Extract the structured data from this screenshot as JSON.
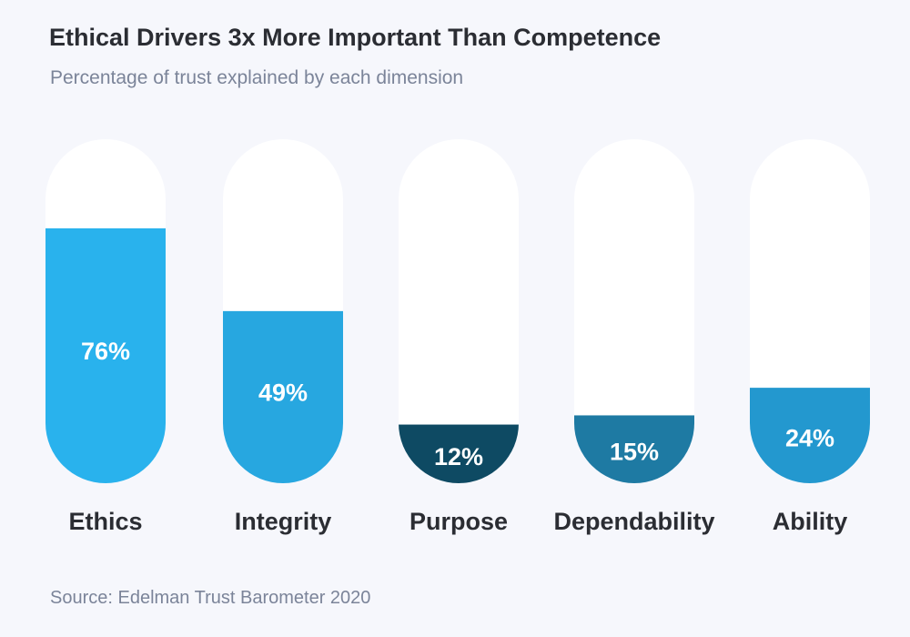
{
  "chart_data": {
    "type": "bar",
    "title": "Ethical Drivers 3x More Important Than Competence",
    "subtitle": "Percentage of trust explained by each dimension",
    "categories": [
      "Ethics",
      "Integrity",
      "Purpose",
      "Dependability",
      "Ability"
    ],
    "values": [
      76,
      49,
      12,
      15,
      24
    ],
    "value_labels": [
      "76%",
      "49%",
      "12%",
      "15%",
      "24%"
    ],
    "colors": [
      "#29b2ed",
      "#27a7e0",
      "#0e4a63",
      "#1e7aa3",
      "#2398cf"
    ],
    "ylim": [
      0,
      100
    ],
    "grid": false,
    "source": "Source: Edelman Trust Barometer 2020"
  }
}
